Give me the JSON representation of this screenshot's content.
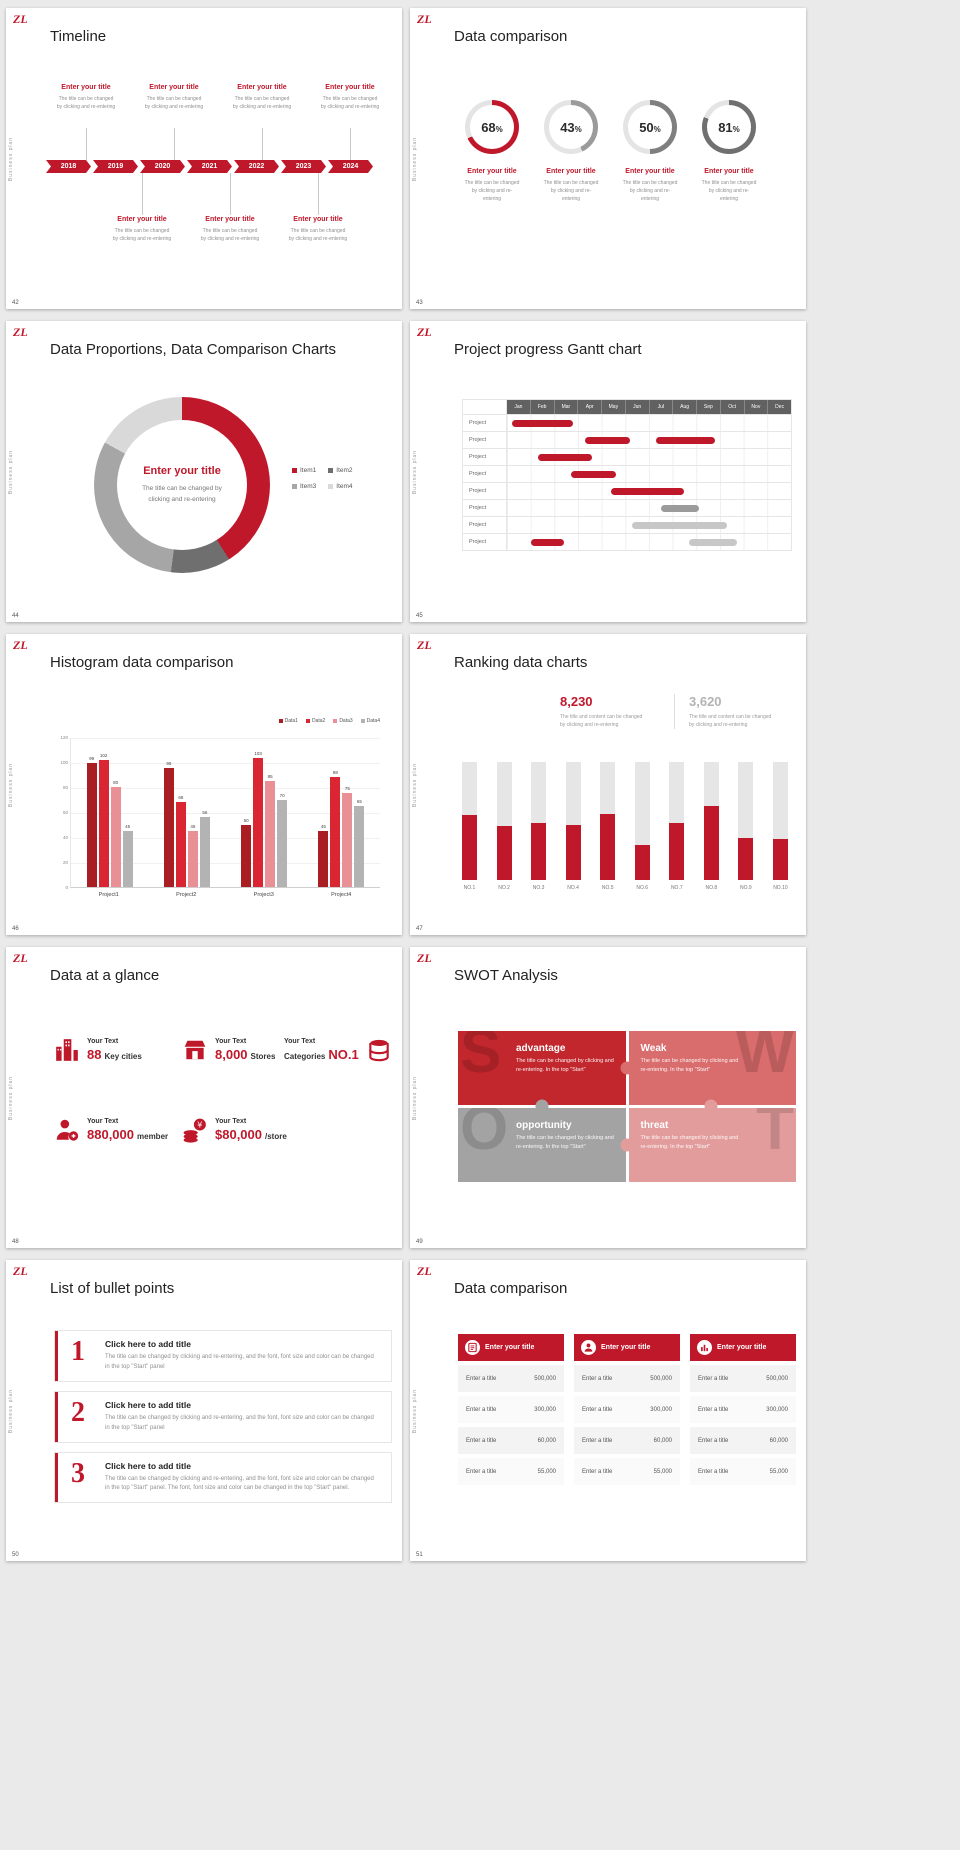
{
  "page": {
    "background": "#eaeaea"
  },
  "common": {
    "logo": "ZL",
    "side_label": "Business plan",
    "accent": "#c0182b"
  },
  "slides": [
    {
      "key": "timeline",
      "number": "42",
      "title": "Timeline",
      "item_title": "Enter your title",
      "item_caption_lines": [
        "The title can be changed",
        "by clicking and re-entering"
      ],
      "top_item_count": 4,
      "bottom_item_count": 3,
      "years": [
        "2018",
        "2019",
        "2020",
        "2021",
        "2022",
        "2023",
        "2024"
      ]
    },
    {
      "key": "donuts",
      "number": "43",
      "title": "Data comparison",
      "item_title": "Enter your title",
      "item_caption_lines": [
        "The title can be changed",
        "by clicking and re-entering"
      ],
      "chart_data": {
        "type": "donut-gauges",
        "values": [
          68,
          43,
          50,
          81
        ],
        "unit": "%",
        "colors": [
          "#c0182b",
          "#9b9b9b",
          "#7f7f7f",
          "#707070"
        ],
        "track_color": "#e4e4e4"
      }
    },
    {
      "key": "pie",
      "number": "44",
      "title": "Data Proportions, Data Comparison Charts",
      "center_title": "Enter your title",
      "center_caption_lines": [
        "The title can be changed by",
        "clicking and re-entering"
      ],
      "chart_data": {
        "type": "pie",
        "labels": [
          "Item1",
          "Item2",
          "Item3",
          "Item4"
        ],
        "values": [
          41,
          11,
          31,
          17
        ],
        "colors": [
          "#c0182b",
          "#6f6f6f",
          "#a6a6a6",
          "#d9d9d9"
        ]
      }
    },
    {
      "key": "gantt",
      "number": "45",
      "title": "Project progress Gantt chart",
      "chart_data": {
        "type": "gantt",
        "months": [
          "Jan",
          "Feb",
          "Mar",
          "Apr",
          "May",
          "Jun",
          "Jul",
          "Aug",
          "Sep",
          "Oct",
          "Nov",
          "Dec"
        ],
        "row_labels": [
          "Project",
          "Project",
          "Project",
          "Project",
          "Project",
          "Project",
          "Project",
          "Project"
        ],
        "bars": [
          {
            "row": 0,
            "start": 0.2,
            "end": 2.8,
            "color": "#c0182b"
          },
          {
            "row": 1,
            "start": 3.3,
            "end": 5.2,
            "color": "#c0182b"
          },
          {
            "row": 1,
            "start": 6.3,
            "end": 8.8,
            "color": "#c0182b"
          },
          {
            "row": 2,
            "start": 1.3,
            "end": 3.6,
            "color": "#c0182b"
          },
          {
            "row": 3,
            "start": 2.7,
            "end": 4.6,
            "color": "#c0182b"
          },
          {
            "row": 4,
            "start": 4.4,
            "end": 7.5,
            "color": "#c0182b"
          },
          {
            "row": 5,
            "start": 6.5,
            "end": 8.1,
            "color": "#9b9b9b"
          },
          {
            "row": 6,
            "start": 5.3,
            "end": 9.3,
            "color": "#c7c7c7"
          },
          {
            "row": 7,
            "start": 1.0,
            "end": 2.4,
            "color": "#c0182b"
          },
          {
            "row": 7,
            "start": 7.7,
            "end": 9.7,
            "color": "#c7c7c7"
          }
        ]
      }
    },
    {
      "key": "hist",
      "number": "46",
      "title": "Histogram data comparison",
      "chart_data": {
        "type": "bar",
        "categories": [
          "Project1",
          "Project2",
          "Project3",
          "Project4"
        ],
        "series": [
          {
            "name": "Data1",
            "color": "#a81e22",
            "values": [
              99,
              95,
              50,
              45
            ]
          },
          {
            "name": "Data2",
            "color": "#d92632",
            "values": [
              102,
              68,
              103,
              88
            ]
          },
          {
            "name": "Data3",
            "color": "#e98f96",
            "values": [
              80,
              45,
              85,
              75
            ]
          },
          {
            "name": "Data4",
            "color": "#b3b3b3",
            "values": [
              45,
              56,
              70,
              65
            ]
          }
        ],
        "ylim": [
          0,
          120
        ],
        "yticks": [
          0,
          20,
          40,
          60,
          80,
          100,
          120
        ],
        "legend_position": "top-right"
      }
    },
    {
      "key": "rank",
      "number": "47",
      "title": "Ranking data charts",
      "stats": [
        {
          "value": "8,230",
          "color": "#c0182b",
          "caption_lines": [
            "The title and content can be changed",
            "by clicking and re-entering"
          ]
        },
        {
          "value": "3,620",
          "color": "#b3b3b3",
          "caption_lines": [
            "The title and content can be changed",
            "by clicking and re-entering"
          ]
        }
      ],
      "chart_data": {
        "type": "bar",
        "categories": [
          "NO.1",
          "NO.2",
          "NO.3",
          "NO.4",
          "NO.5",
          "NO.6",
          "NO.7",
          "NO.8",
          "NO.9",
          "NO.10"
        ],
        "values": [
          55,
          46,
          48,
          47,
          56,
          30,
          48,
          63,
          36,
          35
        ],
        "ylim": [
          0,
          100
        ],
        "bar_color": "#c0182b",
        "track_color": "#e6e6e6"
      }
    },
    {
      "key": "glance",
      "number": "48",
      "title": "Data at a glance",
      "stats": [
        {
          "icon": "city-icon",
          "label": "Your Text",
          "value": "88",
          "unit": "Key cities",
          "order": "value-first"
        },
        {
          "icon": "store-icon",
          "label": "Your Text",
          "value": "8,000",
          "unit": "Stores",
          "order": "value-first"
        },
        {
          "icon": "categories-icon",
          "label": "Your Text",
          "value": "NO.1",
          "unit": "Categories",
          "order": "unit-first"
        },
        {
          "icon": "member-icon",
          "label": "Your Text",
          "value": "880,000",
          "unit": "member",
          "order": "value-first"
        },
        {
          "icon": "money-icon",
          "label": "Your Text",
          "value": "$80,000",
          "unit": "/store",
          "order": "value-first"
        }
      ]
    },
    {
      "key": "swot",
      "number": "49",
      "title": "SWOT Analysis",
      "quads": [
        {
          "letter": "S",
          "title": "advantage",
          "text": "The title can be changed by clicking and re-entering. In the top \"Start\"",
          "color": "#c1272d",
          "letter_side": "left"
        },
        {
          "letter": "W",
          "title": "Weak",
          "text": "The title can be changed by clicking and re-entering. In the top \"Start\"",
          "color": "#d96c6c",
          "letter_side": "right"
        },
        {
          "letter": "O",
          "title": "opportunity",
          "text": "The title can be changed by clicking and re-entering. In the top \"Start\"",
          "color": "#a3a3a3",
          "letter_side": "left"
        },
        {
          "letter": "T",
          "title": "threat",
          "text": "The title can be changed by clicking and re-entering. In the top \"Start\"",
          "color": "#e29c9c",
          "letter_side": "right"
        }
      ]
    },
    {
      "key": "bullets",
      "number": "50",
      "title": "List of bullet points",
      "items": [
        {
          "num": "1",
          "title": "Click here to add title",
          "text": "The title can be changed by clicking and re-entering, and the font, font size and color can be changed in the top \"Start\" panel"
        },
        {
          "num": "2",
          "title": "Click here to add title",
          "text": "The title can be changed by clicking and re-entering, and the font, font size and color can be changed in the top \"Start\" panel"
        },
        {
          "num": "3",
          "title": "Click here to add title",
          "text": "The title can be changed by clicking and re-entering, and the font, font size and color can be changed in the top \"Start\" panel. The font, font size and color can be changed in the top \"Start\" panel."
        }
      ]
    },
    {
      "key": "table",
      "number": "51",
      "title": "Data comparison",
      "header": "Enter your title",
      "row_label": "Enter a title",
      "values": [
        "500,000",
        "300,000",
        "60,000",
        "55,000"
      ],
      "column_count": 3,
      "icons": [
        "report-icon",
        "person-icon",
        "chart-icon"
      ]
    }
  ]
}
